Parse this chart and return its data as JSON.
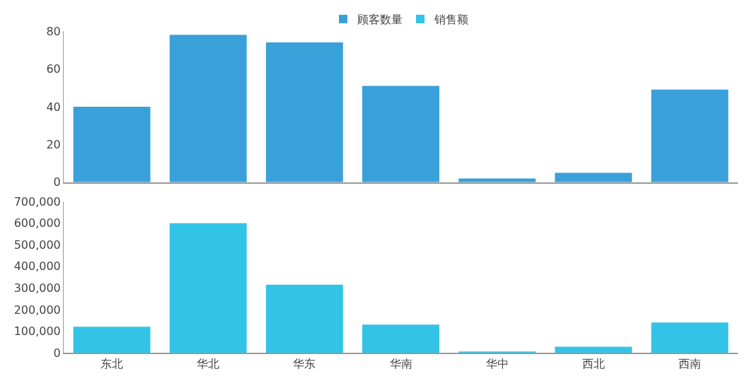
{
  "chart_data": [
    {
      "type": "bar",
      "categories": [
        "东北",
        "华北",
        "华东",
        "华南",
        "华中",
        "西北",
        "西南"
      ],
      "series": [
        {
          "name": "顾客数量",
          "color": "#3aa0da",
          "values": [
            40,
            78,
            74,
            51,
            2,
            5,
            49
          ]
        }
      ],
      "ylim": [
        0,
        80
      ],
      "yticks": [
        0,
        20,
        40,
        60,
        80
      ],
      "legend": "top",
      "tick_labels": "y"
    },
    {
      "type": "bar",
      "categories": [
        "东北",
        "华北",
        "华东",
        "华南",
        "华中",
        "西北",
        "西南"
      ],
      "series": [
        {
          "name": "销售额",
          "color": "#33c3e7",
          "values": [
            120000,
            600000,
            315000,
            130000,
            3000,
            28000,
            140000
          ]
        }
      ],
      "ylim": [
        0,
        700000
      ],
      "yticks": [
        {
          "value": 0,
          "label": "0"
        },
        {
          "value": 100000,
          "label": "100,000"
        },
        {
          "value": 200000,
          "label": "200,000"
        },
        {
          "value": 300000,
          "label": "300,000"
        },
        {
          "value": 400000,
          "label": "400,000"
        },
        {
          "value": 500000,
          "label": "500,000"
        },
        {
          "value": 600000,
          "label": "600,000"
        },
        {
          "value": 700000,
          "label": "700,000"
        }
      ],
      "legend": "top"
    }
  ]
}
